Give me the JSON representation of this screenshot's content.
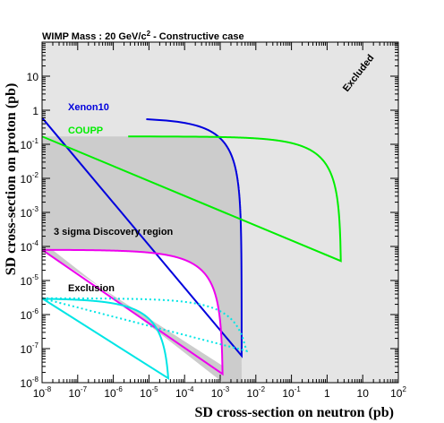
{
  "chart_data": {
    "type": "line",
    "title": "WIMP Mass : 20 GeV/c",
    "title_sup": "2",
    "title_suffix": " - Constructive case",
    "xlabel": "SD cross-section on neutron (pb)",
    "ylabel": "SD cross-section on proton (pb)",
    "x_scale": "log",
    "y_scale": "log",
    "xlim": [
      1e-08,
      100
    ],
    "ylim": [
      1e-08,
      100
    ],
    "x_ticks": [
      {
        "base": "10",
        "exp": "-8",
        "value": -8
      },
      {
        "base": "10",
        "exp": "-7",
        "value": -7
      },
      {
        "base": "10",
        "exp": "-6",
        "value": -6
      },
      {
        "base": "10",
        "exp": "-5",
        "value": -5
      },
      {
        "base": "10",
        "exp": "-4",
        "value": -4
      },
      {
        "base": "10",
        "exp": "-3",
        "value": -3
      },
      {
        "base": "10",
        "exp": "-2",
        "value": -2
      },
      {
        "base": "10",
        "exp": "-1",
        "value": -1
      },
      {
        "base": "1",
        "exp": "",
        "value": 0
      },
      {
        "base": "10",
        "exp": "",
        "value": 1
      },
      {
        "base": "10",
        "exp": "2",
        "value": 2
      }
    ],
    "y_ticks": [
      {
        "base": "10",
        "exp": "-8",
        "value": -8
      },
      {
        "base": "10",
        "exp": "-7",
        "value": -7
      },
      {
        "base": "10",
        "exp": "-6",
        "value": -6
      },
      {
        "base": "10",
        "exp": "-5",
        "value": -5
      },
      {
        "base": "10",
        "exp": "-4",
        "value": -4
      },
      {
        "base": "10",
        "exp": "-3",
        "value": -3
      },
      {
        "base": "10",
        "exp": "-2",
        "value": -2
      },
      {
        "base": "10",
        "exp": "-1",
        "value": -1
      },
      {
        "base": "1",
        "exp": "",
        "value": 0
      },
      {
        "base": "10",
        "exp": "",
        "value": 1
      }
    ],
    "series": [
      {
        "name": "Xenon10",
        "color": "#0000dd",
        "style": "solid",
        "sigma_p": 0.6,
        "sigma_n": 0.004
      },
      {
        "name": "COUPP",
        "color": "#00ee00",
        "style": "solid",
        "sigma_p": 0.17,
        "sigma_n": 2.5
      },
      {
        "color": "#ee00ee",
        "style": "solid",
        "sigma_p": 8e-05,
        "sigma_n": 0.0012
      },
      {
        "color": "#00e5e5",
        "style": "solid",
        "sigma_p": 3e-06,
        "sigma_n": 4e-05
      },
      {
        "color": "#00e5e5",
        "style": "dotted",
        "sigma_p": 3e-06,
        "sigma_n": 0.008
      }
    ],
    "regions": [
      {
        "label": "Excluded",
        "color": "#e5e5e5"
      },
      {
        "label": "3 sigma Discovery region",
        "color": "#cccccc"
      },
      {
        "label": "Exclusion",
        "color": "#ffffff"
      }
    ],
    "grid": false
  }
}
